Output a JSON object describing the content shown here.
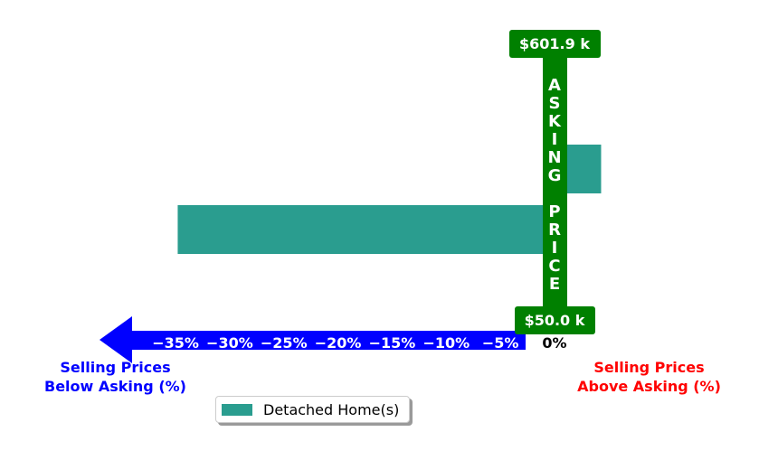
{
  "chart_data": {
    "type": "bar",
    "orientation": "horizontal",
    "series": [
      {
        "name": "Detached Home(s)",
        "values": [
          4.3,
          -34.8
        ],
        "color": "#2a9d8f"
      }
    ],
    "xlim": [
      -42,
      5
    ],
    "x_ticks": [
      -35,
      -30,
      -25,
      -20,
      -15,
      -10,
      -5
    ],
    "x_tick_labels": [
      "−35%",
      "−30%",
      "−25%",
      "−20%",
      "−15%",
      "−10%",
      "−5%"
    ],
    "zero_label": "0%",
    "asking_price_label": "ASKING PRICE",
    "top_price_label": "$601.9 k",
    "bottom_price_label": "$50.0 k",
    "left_caption": "Selling Prices\nBelow Asking (%)",
    "right_caption": "Selling Prices\nAbove Asking (%)",
    "legend_placement": "lower center",
    "grid": false,
    "colors": {
      "bar": "#2a9d8f",
      "axis_arrow": "#0000ff",
      "asking_bar": "#008000",
      "left_caption": "#0000ff",
      "right_caption": "#ff0000",
      "tick_text": "#ffffff"
    }
  }
}
